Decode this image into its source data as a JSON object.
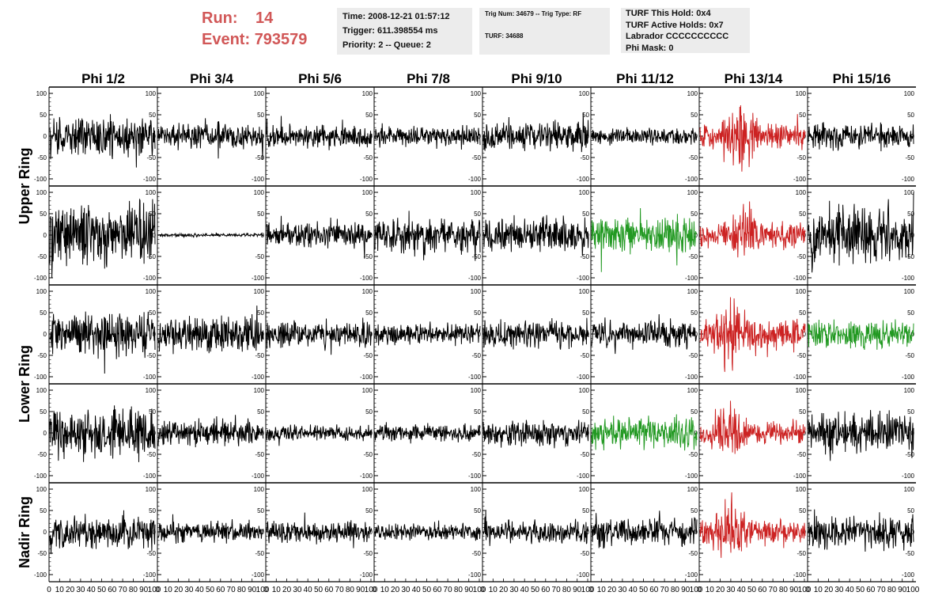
{
  "run": {
    "run_label": "Run:",
    "run_value": "14",
    "event_label": "Event:",
    "event_value": "793579"
  },
  "header_box1": [
    "Time: 2008-12-21 01:57:12",
    "Trigger: 611.398554 ms",
    "Priority: 2 -- Queue: 2"
  ],
  "header_box2": {
    "line1": "Trig Num: 34679 -- Trig Type: RF",
    "line2": "TURF: 34688"
  },
  "header_box3": [
    "TURF This Hold: 0x4",
    "TURF Active Holds: 0x7",
    "Labrador CCCCCCCCCC",
    "Phi Mask: 0"
  ],
  "colors": {
    "normal": "#000000",
    "triggered": "#cc2222",
    "related": "#229922",
    "accent": "#d15757"
  },
  "chart_data": {
    "type": "line",
    "column_titles": [
      "Phi 1/2",
      "Phi 3/4",
      "Phi 5/6",
      "Phi 7/8",
      "Phi 9/10",
      "Phi 11/12",
      "Phi 13/14",
      "Phi 15/16"
    ],
    "row_labels": [
      {
        "text": "Upper Ring",
        "rows": [
          0,
          1
        ]
      },
      {
        "text": "Lower Ring",
        "rows": [
          2,
          3
        ]
      },
      {
        "text": "Nadir Ring",
        "rows": [
          4,
          4
        ]
      }
    ],
    "xlim": [
      0,
      100
    ],
    "ylim": [
      -100,
      100
    ],
    "x_tick_labels": [
      "0",
      "10",
      "20",
      "30",
      "40",
      "50",
      "60",
      "70",
      "80",
      "90",
      "100"
    ],
    "y_tick_labels": [
      "100",
      "50",
      "0",
      "-50",
      "-100"
    ],
    "panels": [
      [
        {
          "color": "black",
          "amplitude": 35
        },
        {
          "color": "black",
          "amplitude": 22
        },
        {
          "color": "black",
          "amplitude": 20
        },
        {
          "color": "black",
          "amplitude": 18
        },
        {
          "color": "black",
          "amplitude": 25
        },
        {
          "color": "black",
          "amplitude": 14
        },
        {
          "color": "red",
          "amplitude": 40,
          "pulse": 0.4
        },
        {
          "color": "black",
          "amplitude": 22
        }
      ],
      [
        {
          "color": "black",
          "amplitude": 55
        },
        {
          "color": "black",
          "amplitude": 3
        },
        {
          "color": "black",
          "amplitude": 22
        },
        {
          "color": "black",
          "amplitude": 30
        },
        {
          "color": "black",
          "amplitude": 30
        },
        {
          "color": "green",
          "amplitude": 32
        },
        {
          "color": "red",
          "amplitude": 38,
          "pulse": 0.4
        },
        {
          "color": "black",
          "amplitude": 50
        }
      ],
      [
        {
          "color": "black",
          "amplitude": 35
        },
        {
          "color": "black",
          "amplitude": 32
        },
        {
          "color": "black",
          "amplitude": 22
        },
        {
          "color": "black",
          "amplitude": 18
        },
        {
          "color": "black",
          "amplitude": 22
        },
        {
          "color": "black",
          "amplitude": 24
        },
        {
          "color": "red",
          "amplitude": 45,
          "pulse": 0.3
        },
        {
          "color": "green",
          "amplitude": 24
        }
      ],
      [
        {
          "color": "black",
          "amplitude": 45
        },
        {
          "color": "black",
          "amplitude": 22
        },
        {
          "color": "black",
          "amplitude": 14
        },
        {
          "color": "black",
          "amplitude": 16
        },
        {
          "color": "black",
          "amplitude": 22
        },
        {
          "color": "green",
          "amplitude": 26
        },
        {
          "color": "red",
          "amplitude": 35,
          "pulse": 0.25
        },
        {
          "color": "black",
          "amplitude": 35
        }
      ],
      [
        {
          "color": "black",
          "amplitude": 30
        },
        {
          "color": "black",
          "amplitude": 18
        },
        {
          "color": "black",
          "amplitude": 18
        },
        {
          "color": "black",
          "amplitude": 14
        },
        {
          "color": "black",
          "amplitude": 20
        },
        {
          "color": "black",
          "amplitude": 24
        },
        {
          "color": "red",
          "amplitude": 40,
          "pulse": 0.28
        },
        {
          "color": "black",
          "amplitude": 28
        }
      ]
    ]
  }
}
